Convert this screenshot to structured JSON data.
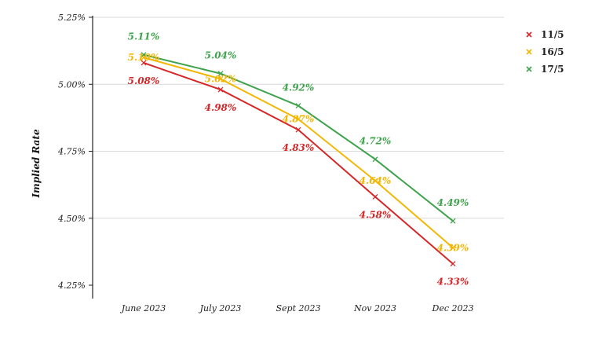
{
  "chart_data": {
    "type": "line",
    "title": "",
    "xlabel": "",
    "ylabel": "Implied Rate",
    "categories": [
      "June 2023",
      "July 2023",
      "Sept 2023",
      "Nov 2023",
      "Dec 2023"
    ],
    "ylim": [
      4.25,
      5.25
    ],
    "yticks": [
      "4.25%",
      "4.50%",
      "4.75%",
      "5.00%",
      "5.25%"
    ],
    "ytick_values": [
      4.25,
      4.5,
      4.75,
      5.0,
      5.25
    ],
    "grid": "horizontal",
    "legend_position": "top-right",
    "marker": "x",
    "series": [
      {
        "name": "11/5",
        "color": "#d62728",
        "values": [
          5.08,
          4.98,
          4.83,
          4.58,
          4.33
        ],
        "labels": [
          "5.08%",
          "4.98%",
          "4.83%",
          "4.58%",
          "4.33%"
        ]
      },
      {
        "name": "16/5",
        "color": "#f2b705",
        "values": [
          5.1,
          5.02,
          4.87,
          4.64,
          4.39
        ],
        "labels": [
          "5.10%",
          "5.02%",
          "4.87%",
          "4.64%",
          "4.39%"
        ]
      },
      {
        "name": "17/5",
        "color": "#3fa34d",
        "values": [
          5.11,
          5.04,
          4.92,
          4.72,
          4.49
        ],
        "labels": [
          "5.11%",
          "5.04%",
          "4.92%",
          "4.72%",
          "4.49%"
        ]
      }
    ]
  }
}
